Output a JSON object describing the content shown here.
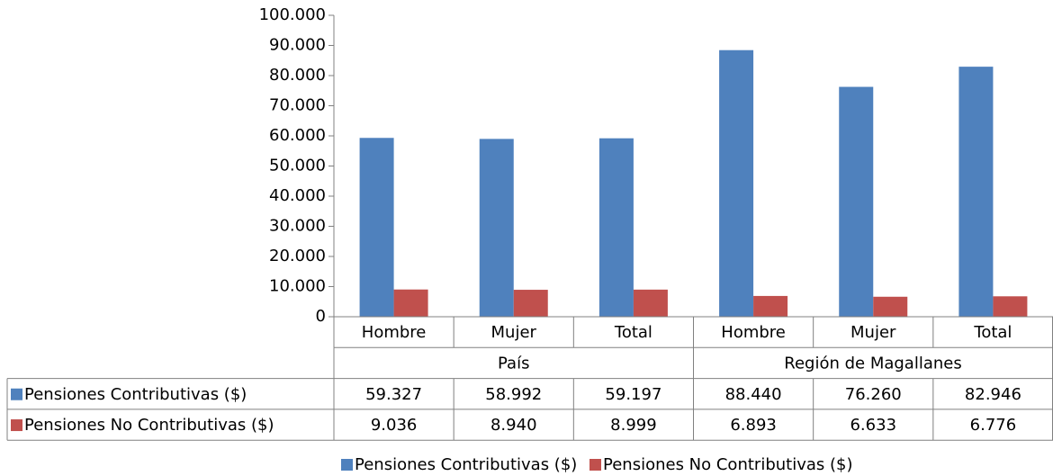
{
  "chart_data": {
    "type": "bar",
    "groups": [
      {
        "name": "País",
        "categories": [
          "Hombre",
          "Mujer",
          "Total"
        ]
      },
      {
        "name": "Región de Magallanes",
        "categories": [
          "Hombre",
          "Mujer",
          "Total"
        ]
      }
    ],
    "series": [
      {
        "name": "Pensiones Contributivas ($)",
        "color": "#4f81bd",
        "values": [
          59327,
          58992,
          59197,
          88440,
          76260,
          82946
        ],
        "value_labels": [
          "59.327",
          "58.992",
          "59.197",
          "88.440",
          "76.260",
          "82.946"
        ]
      },
      {
        "name": "Pensiones No Contributivas ($)",
        "color": "#c0504d",
        "values": [
          9036,
          8940,
          8999,
          6893,
          6633,
          6776
        ],
        "value_labels": [
          "9.036",
          "8.940",
          "8.999",
          "6.893",
          "6.633",
          "6.776"
        ]
      }
    ],
    "ylim": [
      0,
      100000
    ],
    "yticks": [
      0,
      {
        "value": 10000,
        "label": "10.000"
      },
      {
        "value": 20000,
        "label": "20.000"
      },
      {
        "value": 30000,
        "label": "30.000"
      },
      {
        "value": 40000,
        "label": "40.000"
      },
      {
        "value": 50000,
        "label": "50.000"
      },
      {
        "value": 60000,
        "label": "60.000"
      },
      {
        "value": 70000,
        "label": "70.000"
      },
      {
        "value": 80000,
        "label": "80.000"
      },
      {
        "value": 90000,
        "label": "90.000"
      },
      {
        "value": 100000,
        "label": "100.000"
      }
    ],
    "grid": false
  }
}
